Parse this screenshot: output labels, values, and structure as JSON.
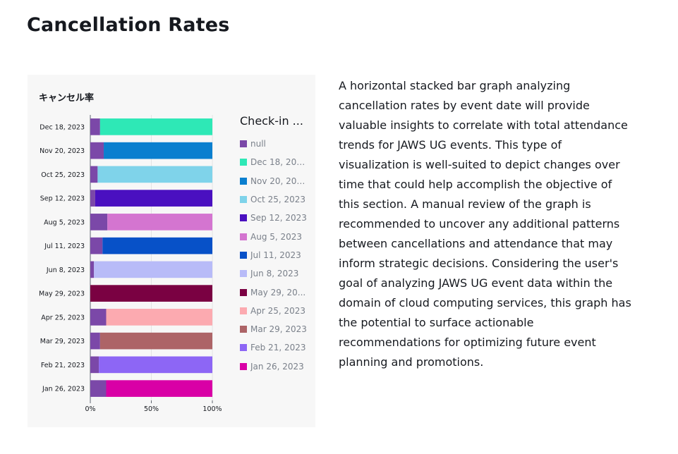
{
  "page": {
    "title": "Cancellation Rates",
    "description": "A horizontal stacked bar graph analyzing cancellation rates by event date will provide valuable insights to correlate with total attendance trends for JAWS UG events. This type of visualization is well-suited to depict changes over time that could help accomplish the objective of this section. A manual review of the graph is recommended to uncover any additional patterns between cancellations and attendance that may inform strategic decisions. Considering the user's goal of analyzing JAWS UG event data within the domain of cloud computing services, this graph has the potential to surface actionable recommendations for optimizing future event planning and promotions."
  },
  "legend": {
    "title": "Check-in ...",
    "items": [
      {
        "label": "null",
        "color": "#7b48a8"
      },
      {
        "label": "Dec 18, 2023",
        "color": "#2ee8b6"
      },
      {
        "label": "Nov 20, 2023",
        "color": "#0a7fcf"
      },
      {
        "label": "Oct 25, 2023",
        "color": "#7fd3ea"
      },
      {
        "label": "Sep 12, 2023",
        "color": "#4a10c0"
      },
      {
        "label": "Aug 5, 2023",
        "color": "#d475d0"
      },
      {
        "label": "Jul 11, 2023",
        "color": "#0751c8"
      },
      {
        "label": "Jun 8, 2023",
        "color": "#b8bbf8"
      },
      {
        "label": "May 29, 20...",
        "color": "#7a0142"
      },
      {
        "label": "Apr 25, 2023",
        "color": "#fcaab0"
      },
      {
        "label": "Mar 29, 2023",
        "color": "#ad6467"
      },
      {
        "label": "Feb 21, 2023",
        "color": "#8d66f5"
      },
      {
        "label": "Jan 26, 2023",
        "color": "#d900a6"
      }
    ]
  },
  "chart_data": {
    "type": "bar",
    "orientation": "horizontal",
    "stacked": true,
    "normalized": true,
    "title": "キャンセル率",
    "categories": [
      "Dec 18, 2023",
      "Nov 20, 2023",
      "Oct 25, 2023",
      "Sep 12, 2023",
      "Aug 5, 2023",
      "Jul 11, 2023",
      "Jun 8, 2023",
      "May 29, 2023",
      "Apr 25, 2023",
      "Mar 29, 2023",
      "Feb 21, 2023",
      "Jan 26, 2023"
    ],
    "series": [
      {
        "name": "null",
        "values": [
          8,
          11,
          6,
          4,
          14,
          10,
          3,
          0,
          13,
          8,
          7,
          13
        ]
      },
      {
        "name": "check-in",
        "values": [
          92,
          89,
          94,
          96,
          86,
          90,
          97,
          100,
          87,
          92,
          93,
          87
        ]
      }
    ],
    "series_colors": [
      "#2ee8b6",
      "#0a7fcf",
      "#7fd3ea",
      "#4a10c0",
      "#d475d0",
      "#0751c8",
      "#b8bbf8",
      "#7a0142",
      "#fcaab0",
      "#ad6467",
      "#8d66f5",
      "#d900a6"
    ],
    "xticks": [
      "0%",
      "50%",
      "100%"
    ],
    "xlim": [
      0,
      100
    ]
  }
}
